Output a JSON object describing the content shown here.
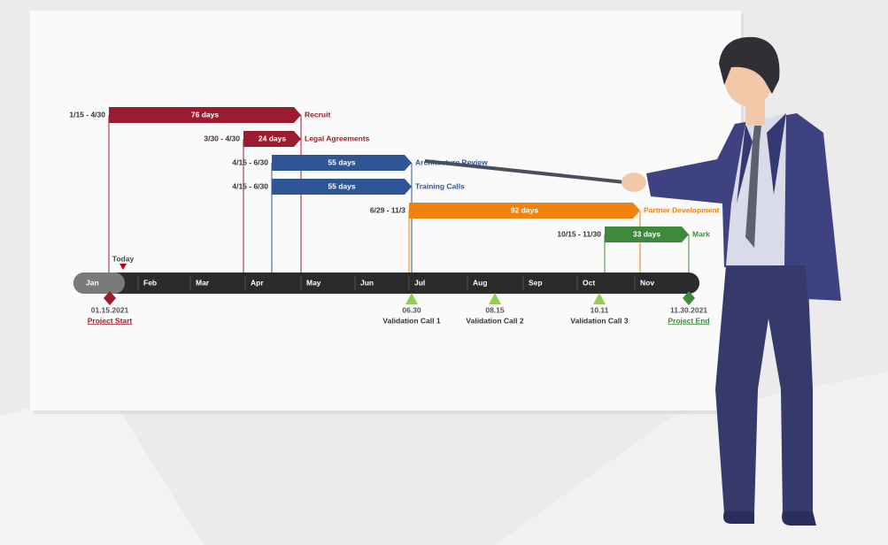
{
  "today": "Today",
  "months": [
    "Jan",
    "Feb",
    "Mar",
    "Apr",
    "May",
    "Jun",
    "Jul",
    "Aug",
    "Sep",
    "Oct",
    "Nov"
  ],
  "tasks": [
    {
      "dates": "1/15 - 4/30",
      "duration": "76 days",
      "name": "Recruit"
    },
    {
      "dates": "3/30 - 4/30",
      "duration": "24 days",
      "name": "Legal Agreements"
    },
    {
      "dates": "4/15 - 6/30",
      "duration": "55 days",
      "name": "Architecture Review"
    },
    {
      "dates": "4/15 - 6/30",
      "duration": "55 days",
      "name": "Training Calls"
    },
    {
      "dates": "6/29 - 11/3",
      "duration": "92 days",
      "name": "Partner Development"
    },
    {
      "dates": "10/15 - 11/30",
      "duration": "33 days",
      "name": "Mark"
    }
  ],
  "milestones": [
    {
      "date": "01.15.2021",
      "label": "Project Start"
    },
    {
      "date": "06.30",
      "label": "Validation Call 1"
    },
    {
      "date": "08.15",
      "label": "Validation Call 2"
    },
    {
      "date": "10.11",
      "label": "Validation Call 3"
    },
    {
      "date": "11.30.2021",
      "label": "Project End"
    }
  ]
}
